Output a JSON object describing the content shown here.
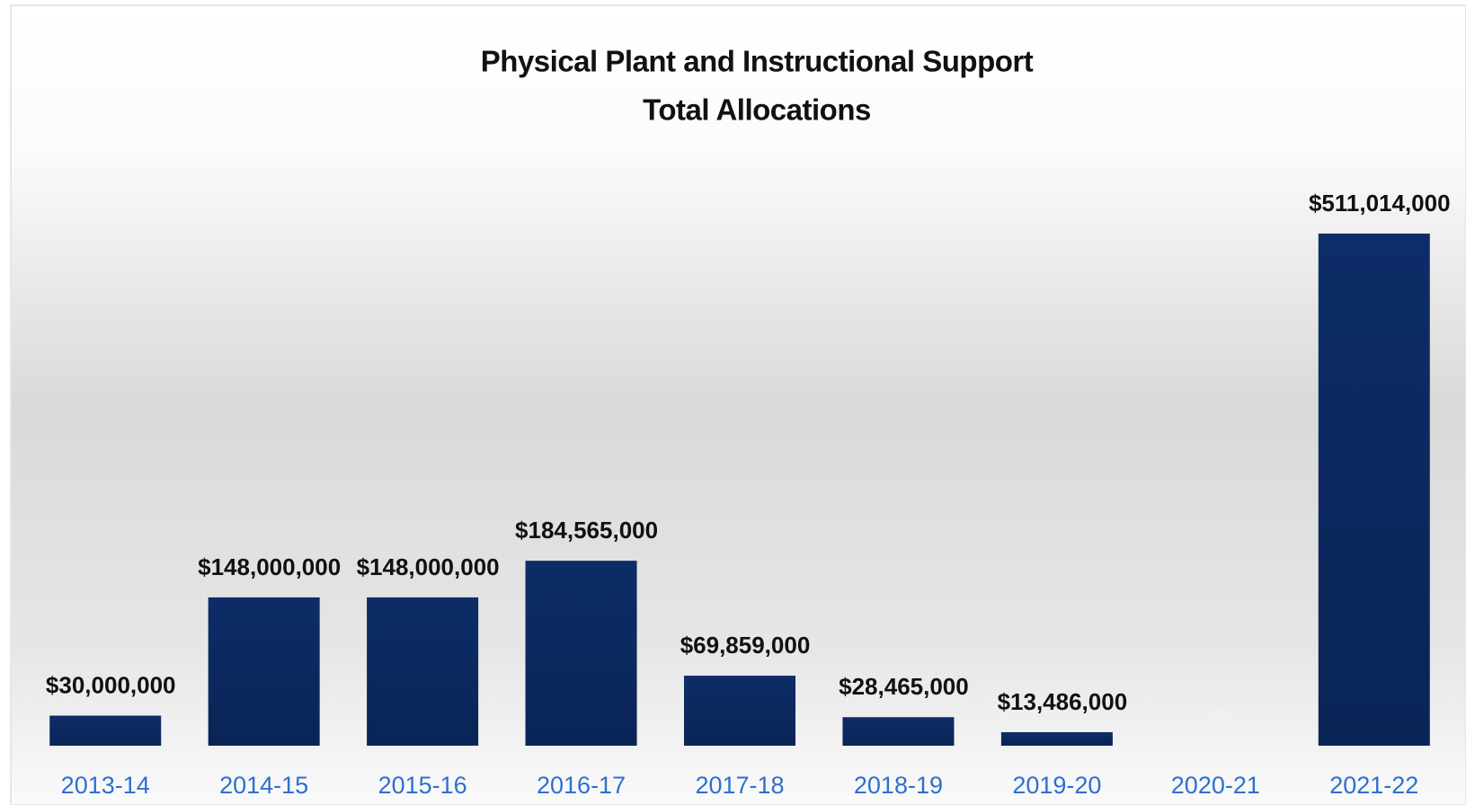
{
  "chart_data": {
    "type": "bar",
    "title": "Physical Plant and Instructional Support",
    "subtitle": "Total Allocations",
    "categories": [
      "2013-14",
      "2014-15",
      "2015-16",
      "2016-17",
      "2017-18",
      "2018-19",
      "2019-20",
      "2020-21",
      "2021-22"
    ],
    "values": [
      30000000,
      148000000,
      148000000,
      184565000,
      69859000,
      28465000,
      13486000,
      0,
      511014000
    ],
    "value_labels": [
      "$30,000,000",
      "$148,000,000",
      "$148,000,000",
      "$184,565,000",
      "$69,859,000",
      "$28,465,000",
      "$13,486,000",
      "$-",
      "$511,014,000"
    ],
    "color": "#0c2a63"
  }
}
